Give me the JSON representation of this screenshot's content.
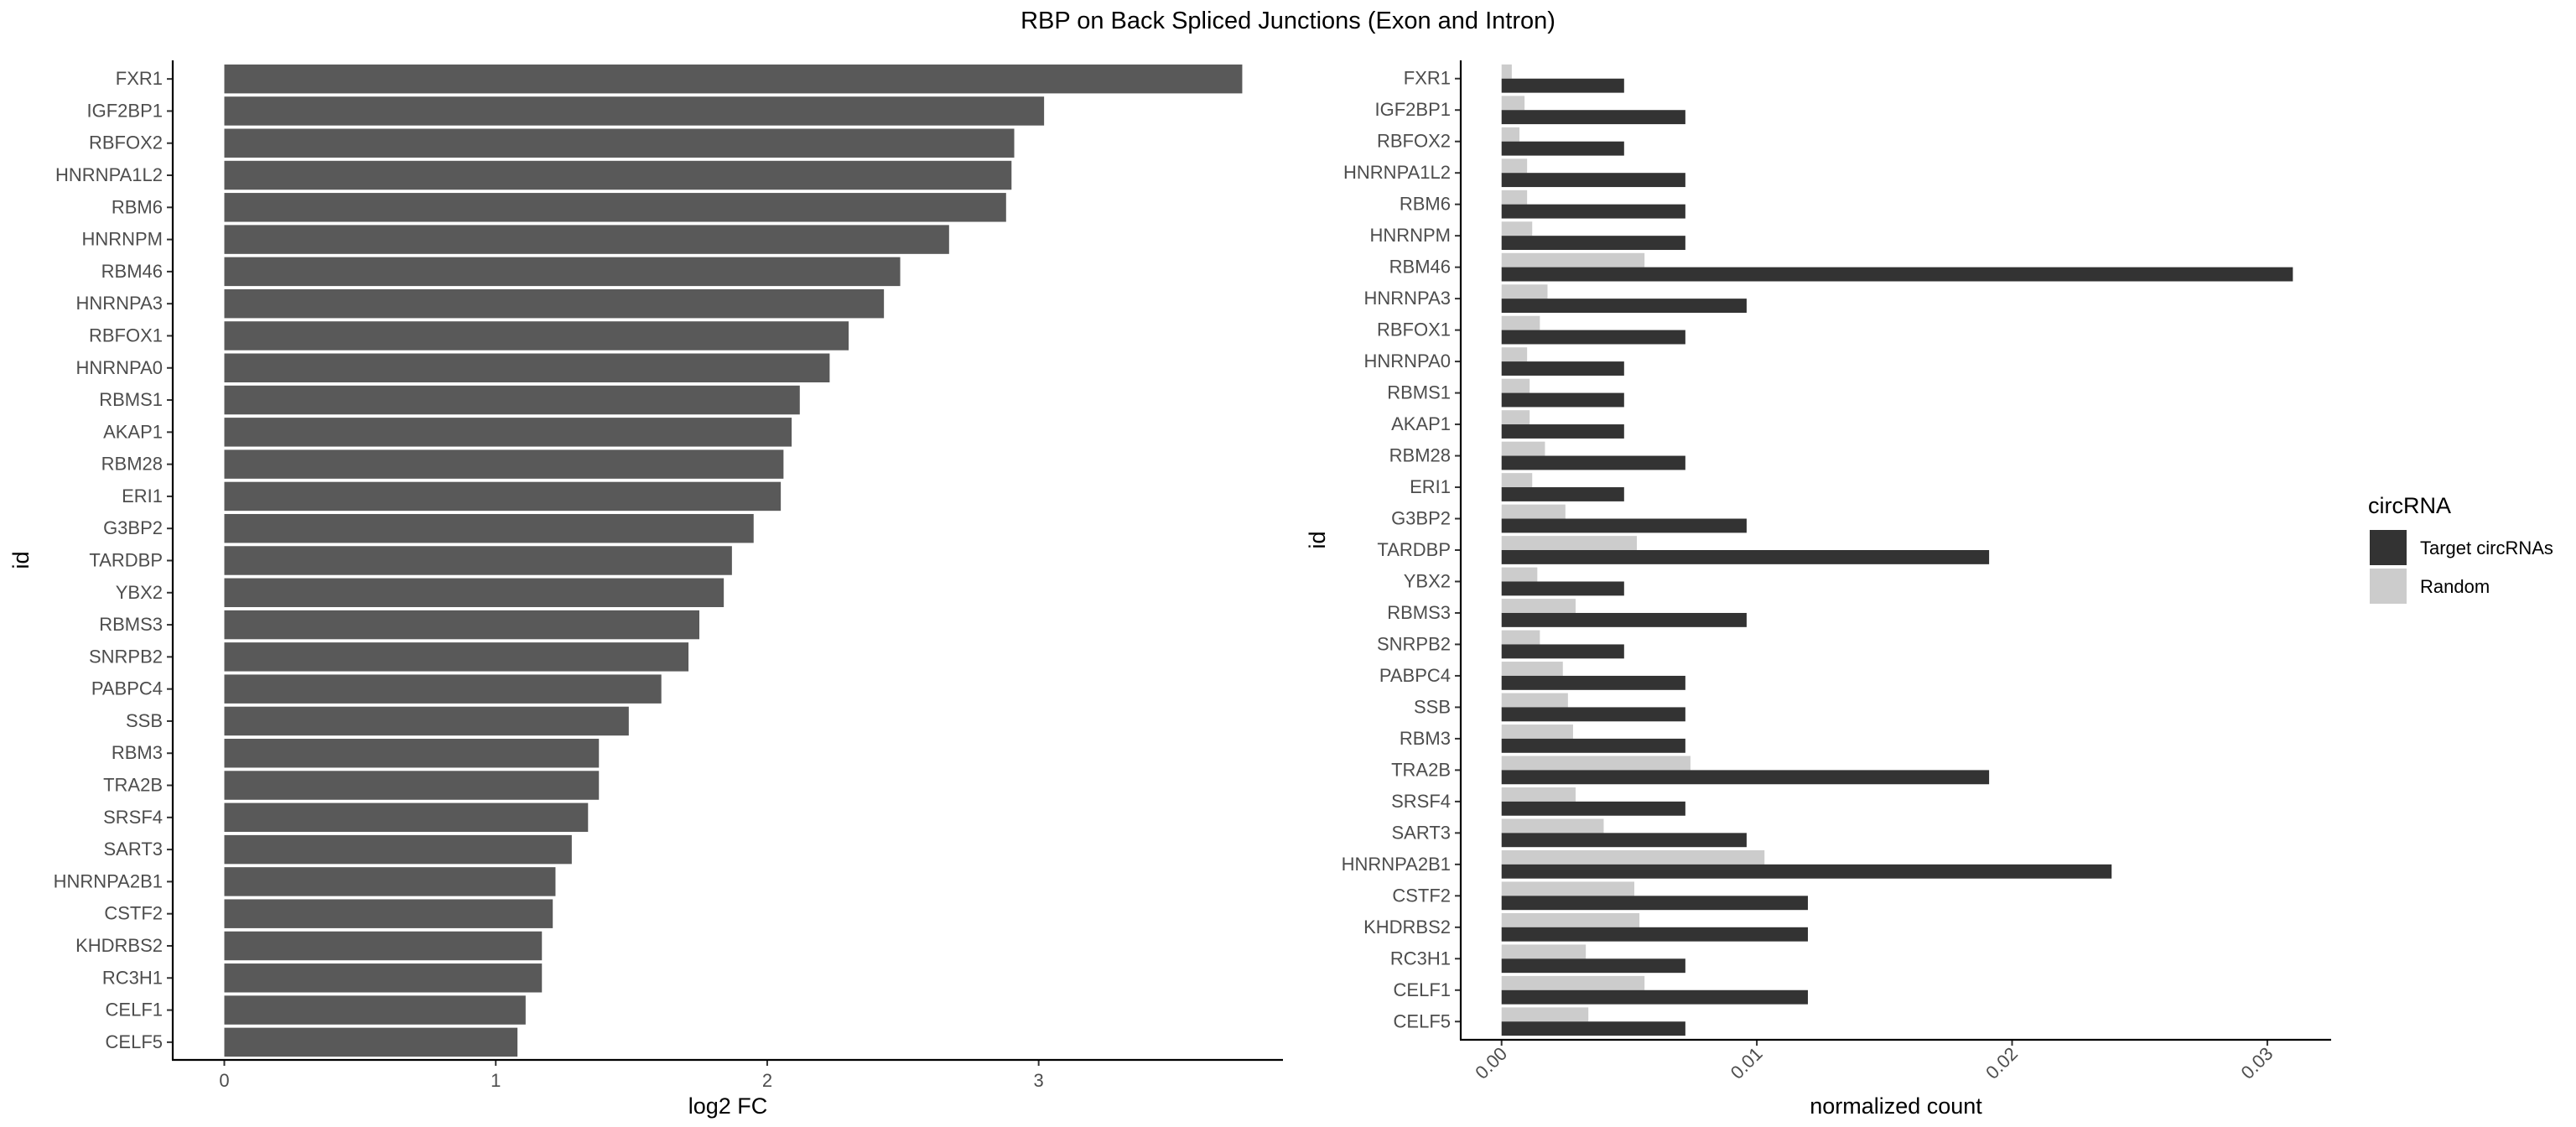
{
  "title": "RBP on Back Spliced Junctions (Exon and Intron)",
  "colors": {
    "left_bar": "#595959",
    "target": "#333333",
    "random": "#cccccc",
    "axis": "#000000",
    "tick_text": "#4d4d4d"
  },
  "chart_data": [
    {
      "type": "bar",
      "orientation": "horizontal",
      "xlabel": "log2 FC",
      "ylabel": "id",
      "xlim": [
        -0.19,
        3.9
      ],
      "xticks": [
        0,
        1,
        2,
        3
      ],
      "xtick_labels": [
        "0",
        "1",
        "2",
        "3"
      ],
      "grid": false,
      "categories": [
        "FXR1",
        "IGF2BP1",
        "RBFOX2",
        "HNRNPA1L2",
        "RBM6",
        "HNRNPM",
        "RBM46",
        "HNRNPA3",
        "RBFOX1",
        "HNRNPA0",
        "RBMS1",
        "AKAP1",
        "RBM28",
        "ERI1",
        "G3BP2",
        "TARDBP",
        "YBX2",
        "RBMS3",
        "SNRPB2",
        "PABPC4",
        "SSB",
        "RBM3",
        "TRA2B",
        "SRSF4",
        "SART3",
        "HNRNPA2B1",
        "CSTF2",
        "KHDRBS2",
        "RC3H1",
        "CELF1",
        "CELF5"
      ],
      "values": [
        3.75,
        3.02,
        2.91,
        2.9,
        2.88,
        2.67,
        2.49,
        2.43,
        2.3,
        2.23,
        2.12,
        2.09,
        2.06,
        2.05,
        1.95,
        1.87,
        1.84,
        1.75,
        1.71,
        1.61,
        1.49,
        1.38,
        1.38,
        1.34,
        1.28,
        1.22,
        1.21,
        1.17,
        1.17,
        1.11,
        1.08
      ]
    },
    {
      "type": "bar",
      "orientation": "horizontal",
      "grouped": true,
      "xlabel": "normalized count",
      "ylabel": "id",
      "xlim": [
        -0.0016,
        0.0325
      ],
      "xticks": [
        0,
        0.01,
        0.02,
        0.03
      ],
      "xtick_labels": [
        "0.00",
        "0.01",
        "0.02",
        "0.03"
      ],
      "grid": false,
      "legend": {
        "title": "circRNA",
        "position": "right"
      },
      "categories": [
        "FXR1",
        "IGF2BP1",
        "RBFOX2",
        "HNRNPA1L2",
        "RBM6",
        "HNRNPM",
        "RBM46",
        "HNRNPA3",
        "RBFOX1",
        "HNRNPA0",
        "RBMS1",
        "AKAP1",
        "RBM28",
        "ERI1",
        "G3BP2",
        "TARDBP",
        "YBX2",
        "RBMS3",
        "SNRPB2",
        "PABPC4",
        "SSB",
        "RBM3",
        "TRA2B",
        "SRSF4",
        "SART3",
        "HNRNPA2B1",
        "CSTF2",
        "KHDRBS2",
        "RC3H1",
        "CELF1",
        "CELF5"
      ],
      "series": [
        {
          "name": "Target circRNAs",
          "values": [
            0.0048,
            0.0072,
            0.0048,
            0.0072,
            0.0072,
            0.0072,
            0.031,
            0.0096,
            0.0072,
            0.0048,
            0.0048,
            0.0048,
            0.0072,
            0.0048,
            0.0096,
            0.0191,
            0.0048,
            0.0096,
            0.0048,
            0.0072,
            0.0072,
            0.0072,
            0.0191,
            0.0072,
            0.0096,
            0.0239,
            0.012,
            0.012,
            0.0072,
            0.012,
            0.0072
          ]
        },
        {
          "name": "Random",
          "values": [
            0.0004,
            0.0009,
            0.0007,
            0.001,
            0.001,
            0.0012,
            0.0056,
            0.0018,
            0.0015,
            0.001,
            0.0011,
            0.0011,
            0.0017,
            0.0012,
            0.0025,
            0.0053,
            0.0014,
            0.0029,
            0.0015,
            0.0024,
            0.0026,
            0.0028,
            0.0074,
            0.0029,
            0.004,
            0.0103,
            0.0052,
            0.0054,
            0.0033,
            0.0056,
            0.0034
          ]
        }
      ]
    }
  ]
}
